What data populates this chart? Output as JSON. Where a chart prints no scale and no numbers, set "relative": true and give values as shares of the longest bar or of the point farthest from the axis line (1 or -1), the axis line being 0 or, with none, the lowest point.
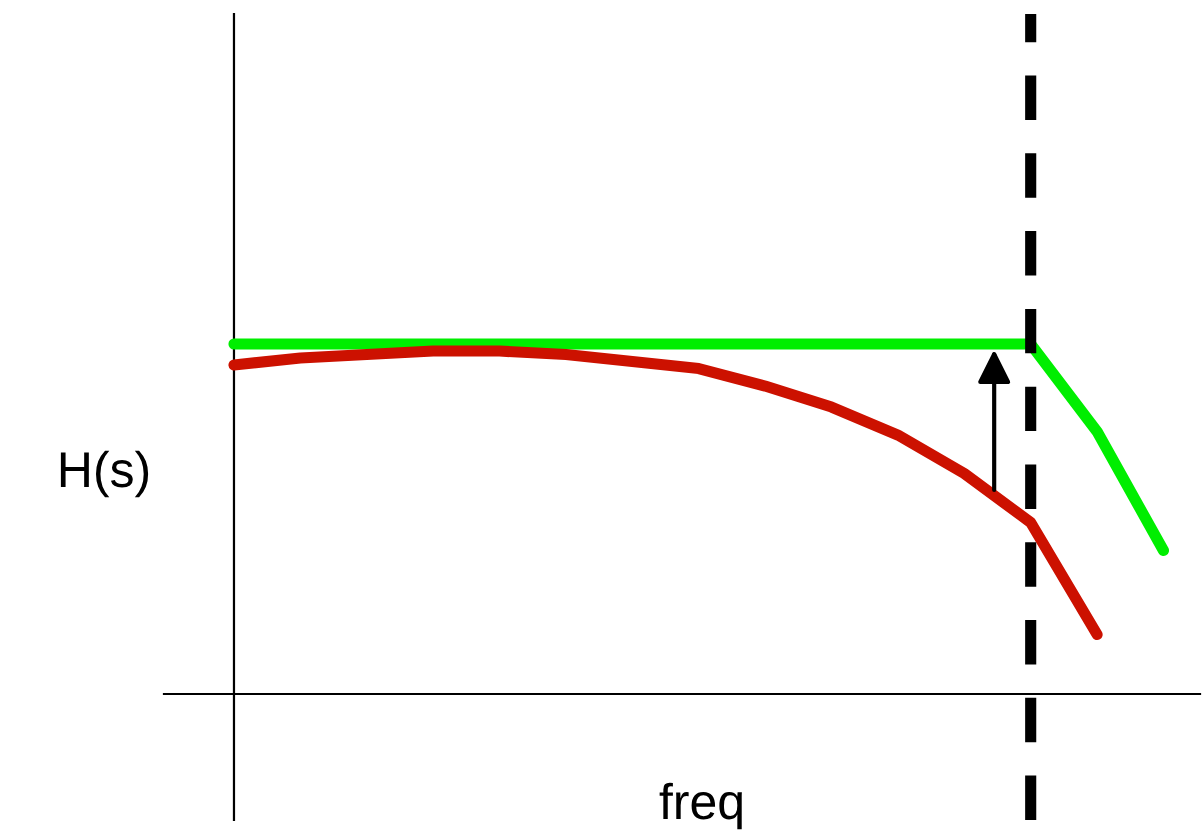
{
  "chart_data": {
    "type": "line",
    "relative": true,
    "xlabel": "freq",
    "ylabel": "H(s)",
    "categories": [
      null,
      null,
      null,
      null,
      null,
      null,
      null,
      null,
      null,
      null,
      null,
      null,
      null,
      null,
      null
    ],
    "series": [
      {
        "color": "#00ee00",
        "values": [
          1,
          1,
          1,
          1,
          1,
          1,
          1,
          1,
          1,
          1,
          1,
          1,
          1,
          0.75,
          0.41
        ]
      },
      {
        "color": "#cc1100",
        "values": [
          0.94,
          0.96,
          0.97,
          0.98,
          0.98,
          0.97,
          0.95,
          0.93,
          0.88,
          0.82,
          0.74,
          0.63,
          0.49,
          0.17,
          null
        ]
      }
    ],
    "marker": "none",
    "line_style": "solid"
  }
}
